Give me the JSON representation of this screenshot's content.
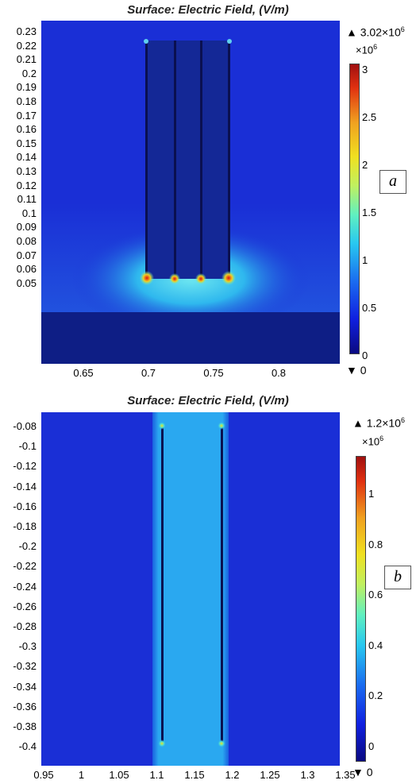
{
  "panels": [
    {
      "tag": "a",
      "title": "Surface: Electric Field, (V/m)",
      "y_ticks": [
        "0.23",
        "0.22",
        "0.21",
        "0.2",
        "0.19",
        "0.18",
        "0.17",
        "0.16",
        "0.15",
        "0.14",
        "0.13",
        "0.12",
        "0.11",
        "0.1",
        "0.09",
        "0.08",
        "0.07",
        "0.06",
        "0.05"
      ],
      "x_ticks": [
        "0.65",
        "0.7",
        "0.75",
        "0.8"
      ],
      "colorbar": {
        "max_label": "3.02×10",
        "max_exp": "6",
        "multiplier": "×10",
        "multiplier_exp": "6",
        "ticks": [
          "3",
          "2.5",
          "2",
          "1.5",
          "1",
          "0.5",
          "0"
        ],
        "min_label": "0"
      },
      "colors": {
        "background": "#1a2fd6",
        "electrode": "#142896",
        "substrate": "#0e1e85",
        "hotspot": "#e01010"
      }
    },
    {
      "tag": "b",
      "title": "Surface: Electric Field, (V/m)",
      "y_ticks": [
        "-0.08",
        "-0.1",
        "-0.12",
        "-0.14",
        "-0.16",
        "-0.18",
        "-0.2",
        "-0.22",
        "-0.24",
        "-0.26",
        "-0.28",
        "-0.3",
        "-0.32",
        "-0.34",
        "-0.36",
        "-0.38",
        "-0.4"
      ],
      "x_ticks": [
        "0.95",
        "1",
        "1.05",
        "1.1",
        "1.15",
        "1.2",
        "1.25",
        "1.3",
        "1.35"
      ],
      "colorbar": {
        "max_label": "1.2×10",
        "max_exp": "6",
        "multiplier": "×10",
        "multiplier_exp": "6",
        "ticks": [
          "1",
          "0.8",
          "0.6",
          "0.4",
          "0.2",
          "0"
        ],
        "min_label": "0"
      },
      "colors": {
        "background": "#1a2fd6",
        "gap": "#2aa8f0",
        "electrode": "#0a1050"
      }
    }
  ]
}
